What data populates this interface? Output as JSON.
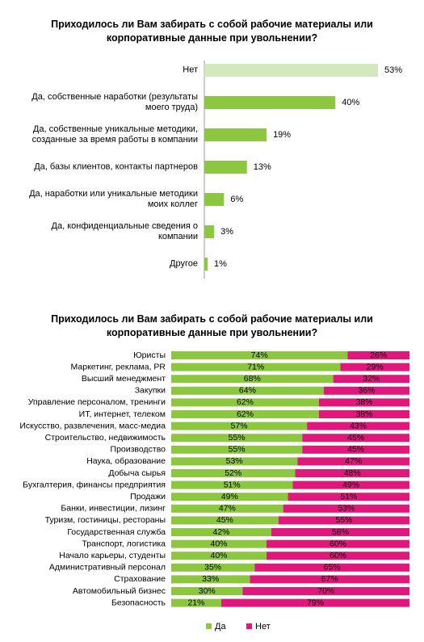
{
  "chart_data": [
    {
      "type": "bar",
      "title": "Приходилось ли Вам забирать с собой рабочие материалы или корпоративные данные при увольнении?",
      "categories": [
        "Нет",
        "Да, собственные наработки (результаты моего труда)",
        "Да, собственные уникальные методики, созданные за время работы в компании",
        "Да, базы клиентов, контакты партнеров",
        "Да, наработки или уникальные методики моих коллег",
        "Да, конфиденциальные сведения о компании",
        "Другое"
      ],
      "values": [
        53,
        40,
        19,
        13,
        6,
        3,
        1
      ],
      "value_labels": [
        "53%",
        "40%",
        "19%",
        "13%",
        "6%",
        "3%",
        "1%"
      ],
      "colors": [
        "#d4e8bd",
        "#8dc63f",
        "#8dc63f",
        "#8dc63f",
        "#8dc63f",
        "#8dc63f",
        "#8dc63f"
      ]
    },
    {
      "type": "stacked_bar",
      "title": "Приходилось ли Вам забирать с собой рабочие материалы или корпоративные данные при увольнении?",
      "categories": [
        "Юристы",
        "Маркетинг, реклама, PR",
        "Высший менеджмент",
        "Закупки",
        "Управление персоналом, тренинги",
        "ИТ, интернет, телеком",
        "Искусство, развлечения, масс-медиа",
        "Строительство, недвижимость",
        "Производство",
        "Наука, образование",
        "Добыча сырья",
        "Бухгалтерия, финансы предприятия",
        "Продажи",
        "Банки, инвестиции, лизинг",
        "Туризм, гостиницы, рестораны",
        "Государственная служба",
        "Транспорт, логистика",
        "Начало карьеры, студенты",
        "Административный персонал",
        "Страхование",
        "Автомобильный бизнес",
        "Безопасность"
      ],
      "series": [
        {
          "name": "Да",
          "color": "#8dc63f",
          "values": [
            74,
            71,
            68,
            64,
            62,
            62,
            57,
            55,
            55,
            53,
            52,
            51,
            49,
            47,
            45,
            42,
            40,
            40,
            35,
            33,
            30,
            21
          ],
          "value_labels": [
            "74%",
            "71%",
            "68%",
            "64%",
            "62%",
            "62%",
            "57%",
            "55%",
            "55%",
            "53%",
            "52%",
            "51%",
            "49%",
            "47%",
            "45%",
            "42%",
            "40%",
            "40%",
            "35%",
            "33%",
            "30%",
            "21%"
          ]
        },
        {
          "name": "Нет",
          "color": "#e0187c",
          "values": [
            26,
            29,
            32,
            36,
            38,
            38,
            43,
            45,
            45,
            47,
            48,
            49,
            51,
            53,
            55,
            58,
            60,
            60,
            65,
            67,
            70,
            79
          ],
          "value_labels": [
            "26%",
            "29%",
            "32%",
            "36%",
            "38%",
            "38%",
            "43%",
            "45%",
            "45%",
            "47%",
            "48%",
            "49%",
            "51%",
            "53%",
            "55%",
            "58%",
            "60%",
            "60%",
            "65%",
            "67%",
            "70%",
            "79%"
          ]
        }
      ]
    }
  ]
}
